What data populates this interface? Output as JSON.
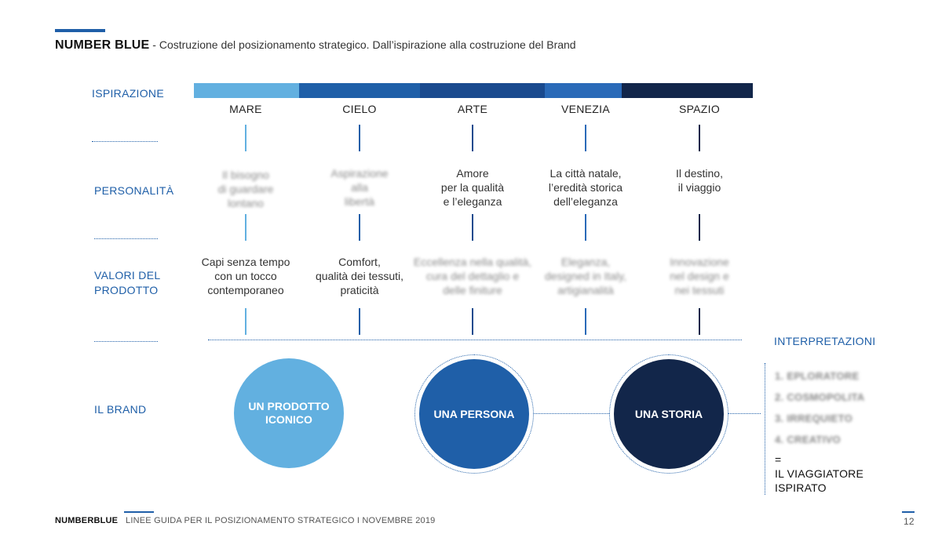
{
  "header": {
    "brand": "NUMBER BLUE",
    "subtitle": " - Costruzione del posizionamento strategico. Dall’ispirazione alla costruzione del Brand"
  },
  "rows": {
    "ispirazione": "ISPIRAZIONE",
    "personalita": "PERSONALITÀ",
    "valori_1": "VALORI DEL",
    "valori_2": "PRODOTTO",
    "brand": "IL BRAND"
  },
  "colors": {
    "mare": "#62b0e0",
    "cielo": "#1f5fa8",
    "arte": "#1a4a8e",
    "venezia": "#2a6ab8",
    "spazio": "#12264a"
  },
  "columns": [
    {
      "name": "MARE",
      "personalita": [
        "Il bisogno",
        "di guardare",
        "lontano"
      ],
      "valori": [
        "Capi senza tempo",
        "con un tocco",
        "contemporaneo"
      ]
    },
    {
      "name": "CIELO",
      "personalita": [
        "Aspirazione",
        "alla",
        "libertà"
      ],
      "valori": [
        "Comfort,",
        "qualità dei tessuti,",
        "praticità"
      ]
    },
    {
      "name": "ARTE",
      "personalita": [
        "Amore",
        "per la qualità",
        "e l’eleganza"
      ],
      "valori": [
        "Eccellenza nella qualità,",
        "cura del dettaglio e",
        "delle finiture"
      ]
    },
    {
      "name": "VENEZIA",
      "personalita": [
        "La città natale,",
        "l’eredità storica",
        "dell’eleganza"
      ],
      "valori": [
        "Eleganza,",
        "designed in Italy,",
        "artigianalità"
      ]
    },
    {
      "name": "SPAZIO",
      "personalita": [
        "Il destino,",
        "il viaggio"
      ],
      "valori": [
        "Innovazione",
        "nel design e",
        "nei tessuti"
      ]
    }
  ],
  "brand_circles": {
    "c1_line1": "UN PRODOTTO",
    "c1_line2": "ICONICO",
    "c2": "UNA PERSONA",
    "c3": "UNA STORIA"
  },
  "interpretazioni": {
    "title": "INTERPRETAZIONI",
    "items": [
      "1. EPLORATORE",
      "2. COSMOPOLITA",
      "3. IRREQUIETO",
      "4. CREATIVO"
    ],
    "equals": "=",
    "result_1": "IL VIAGGIATORE",
    "result_2": "ISPIRATO"
  },
  "footer": {
    "brand": "NUMBERBLUE",
    "text": "LINEE GUIDA PER IL POSIZIONAMENTO STRATEGICO I  NOVEMBRE 2019",
    "page": "12"
  }
}
